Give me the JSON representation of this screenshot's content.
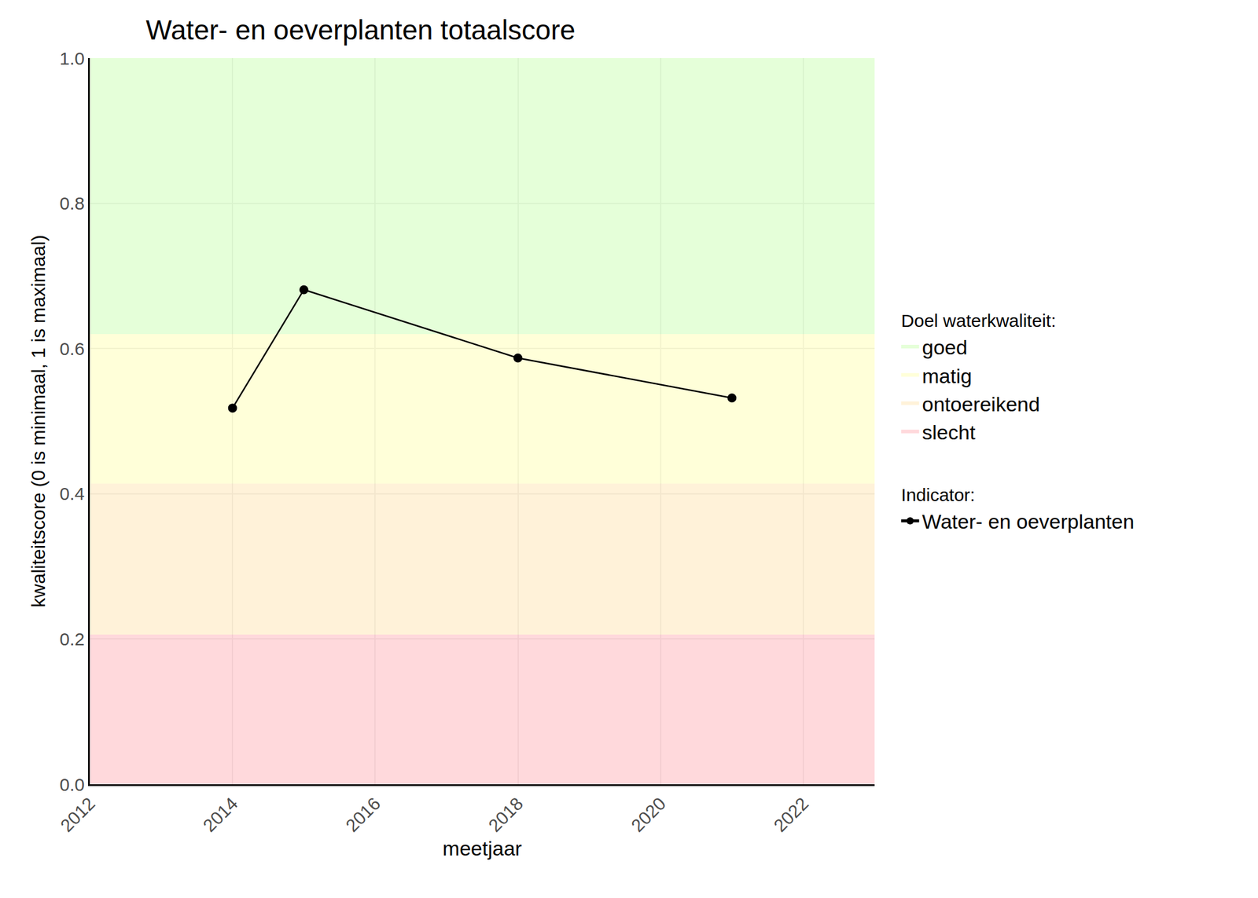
{
  "chart_data": {
    "type": "line",
    "title": "Water- en oeverplanten totaalscore",
    "x_label": "meetjaar",
    "y_label": "kwaliteitscore (0 is minimaal, 1 is maximaal)",
    "x": [
      2014,
      2015,
      2018,
      2021
    ],
    "series": [
      {
        "name": "Water- en oeverplanten",
        "color": "#000000",
        "marker": "circle",
        "line_style": "solid",
        "values": [
          0.518,
          0.681,
          0.587,
          0.532
        ]
      }
    ],
    "xlim": [
      2012,
      2023
    ],
    "xticks": [
      2012,
      2014,
      2016,
      2018,
      2020,
      2022
    ],
    "ylim": [
      0,
      1
    ],
    "yticks": [
      {
        "value": 0,
        "label": "0.0"
      },
      0.2,
      0.4,
      0.6,
      0.8,
      {
        "value": 1,
        "label": "1.0"
      }
    ],
    "grid": true,
    "legend": "right",
    "band_legend_title": "Doel waterkwaliteit:",
    "series_legend_title": "Indicator:",
    "bands": [
      {
        "name": "goed",
        "color": "rgba(204,255,179,0.5)",
        "from": 0.62,
        "to": 1
      },
      {
        "name": "matig",
        "color": "rgba(255,255,179,0.5)",
        "from": 0.414,
        "to": 0.62
      },
      {
        "name": "ontoereikend",
        "color": "rgba(255,230,179,0.5)",
        "from": 0.206,
        "to": 0.414
      },
      {
        "name": "slecht",
        "color": "rgba(255,179,186,0.5)",
        "from": 0,
        "to": 0.206
      }
    ]
  }
}
